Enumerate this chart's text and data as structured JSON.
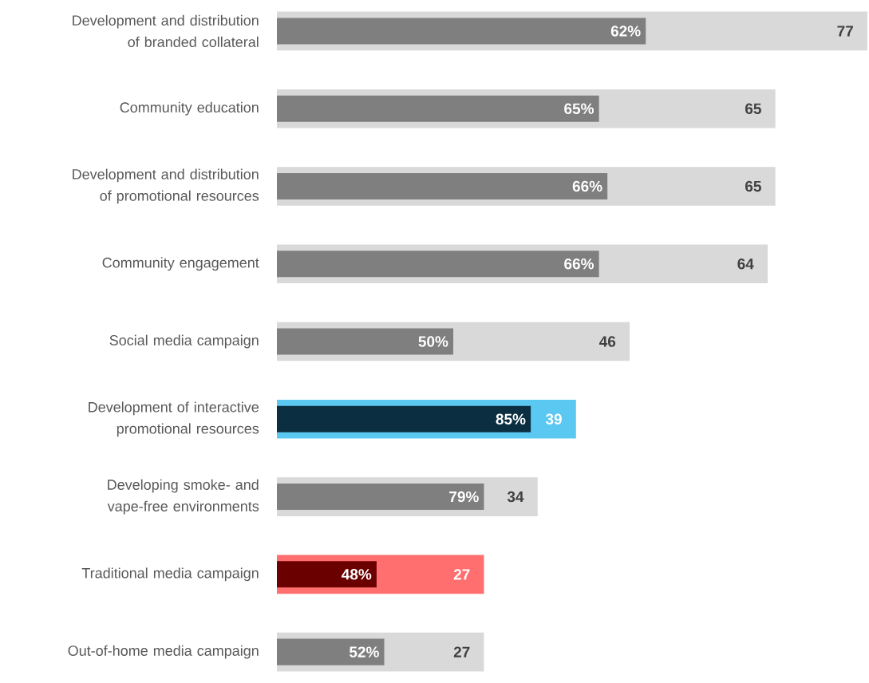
{
  "chart_data": {
    "type": "bar",
    "orientation": "horizontal",
    "categories": [
      "Development and distribution of branded collateral",
      "Community education",
      "Development and distribution of promotional resources",
      "Community engagement",
      "Social media campaign",
      "Development of interactive promotional resources",
      "Developing smoke- and vape-free environments",
      "Traditional media campaign",
      "Out-of-home media campaign"
    ],
    "series": [
      {
        "colors": [
          "#d9d9d9",
          "#d9d9d9",
          "#d9d9d9",
          "#d9d9d9",
          "#d9d9d9",
          "#5bc8f2",
          "#d9d9d9",
          "#ff6f6f",
          "#d9d9d9"
        ],
        "values": [
          77,
          65,
          65,
          64,
          46,
          39,
          34,
          27,
          27
        ],
        "value_labels": [
          "77",
          "65",
          "65",
          "64",
          "46",
          "39",
          "34",
          "27",
          "27"
        ]
      },
      {
        "colors": [
          "#7f7f7f",
          "#7f7f7f",
          "#7f7f7f",
          "#7f7f7f",
          "#7f7f7f",
          "#0b2e40",
          "#7f7f7f",
          "#6b0000",
          "#7f7f7f"
        ],
        "values": [
          48.1,
          42.0,
          43.1,
          42.0,
          23.0,
          33.1,
          27.0,
          13.0,
          14.0
        ]
      }
    ],
    "annotations": [
      {
        "text": "62%",
        "x": 48.1,
        "y": "Development and distribution of branded collateral"
      },
      {
        "text": "65%",
        "x": 42.0,
        "y": "Community education"
      },
      {
        "text": "66%",
        "x": 43.1,
        "y": "Development and distribution of promotional resources"
      },
      {
        "text": "66%",
        "x": 42.0,
        "y": "Community engagement"
      },
      {
        "text": "50%",
        "x": 23.0,
        "y": "Social media campaign"
      },
      {
        "text": "85%",
        "x": 33.1,
        "y": "Development of interactive promotional resources"
      },
      {
        "text": "79%",
        "x": 27.0,
        "y": "Developing smoke- and vape-free environments"
      },
      {
        "text": "48%",
        "x": 13.0,
        "y": "Traditional media campaign"
      },
      {
        "text": "52%",
        "x": 14.0,
        "y": "Out-of-home media campaign"
      }
    ]
  }
}
